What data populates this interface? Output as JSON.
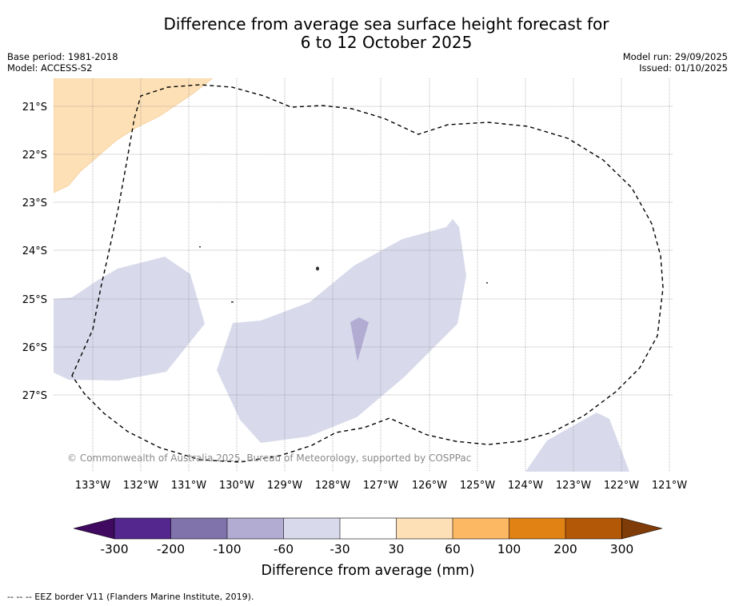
{
  "title": {
    "line1": "Difference from average sea surface height forecast for",
    "line2": "6 to 12 October 2025"
  },
  "meta_left": {
    "base_period": "Base period: 1981-2018",
    "model": "Model: ACCESS-S2"
  },
  "meta_right": {
    "model_run": "Model run: 29/09/2025",
    "issued": "Issued: 01/10/2025"
  },
  "map": {
    "lat_labels": [
      "21°S",
      "22°S",
      "23°S",
      "24°S",
      "25°S",
      "26°S",
      "27°S"
    ],
    "lon_labels": [
      "133°W",
      "132°W",
      "131°W",
      "130°W",
      "129°W",
      "128°W",
      "127°W",
      "126°W",
      "125°W",
      "124°W",
      "123°W",
      "122°W",
      "121°W"
    ],
    "copyright": "© Commonwealth of Australia 2025, Bureau of Meteorology, supported by COSPPac"
  },
  "colorbar": {
    "colors": [
      "#3f0a60",
      "#54278f",
      "#8073ac",
      "#b2abd2",
      "#d8daeb",
      "#ffffff",
      "#fee0b6",
      "#fdb863",
      "#e08214",
      "#b35806",
      "#7f3b08"
    ],
    "ticks": [
      "-300",
      "-200",
      "-100",
      "-60",
      "-30",
      "30",
      "60",
      "100",
      "200",
      "300"
    ],
    "title": "Difference from average (mm)"
  },
  "footnote": "--  --  -- EEZ border V11 (Flanders Marine Institute, 2019)."
}
